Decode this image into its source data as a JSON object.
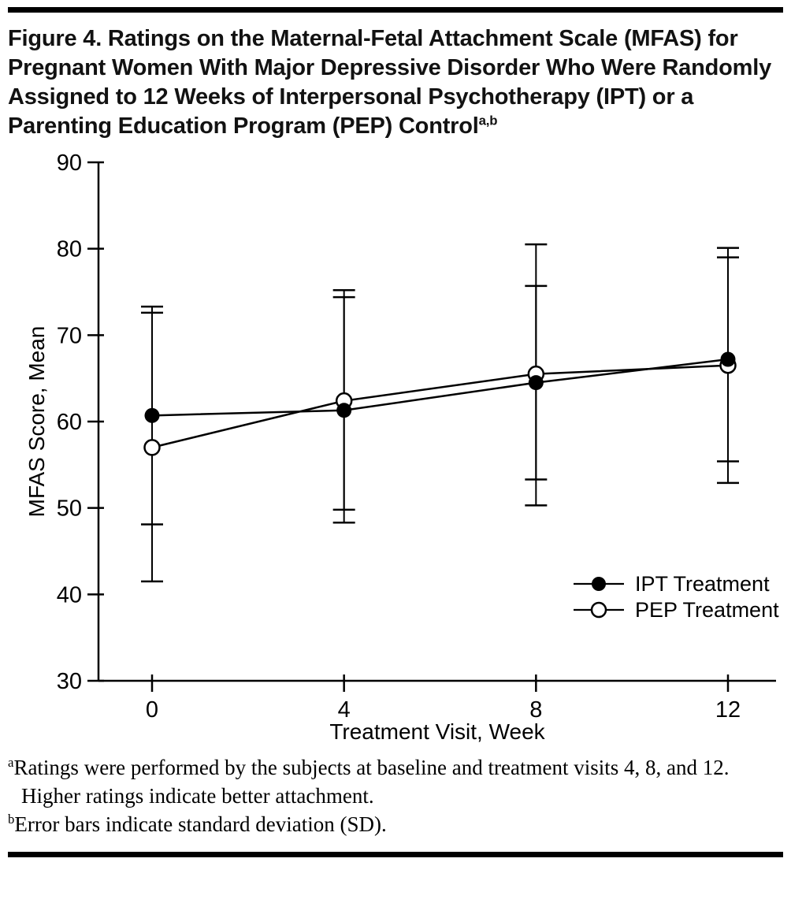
{
  "page": {
    "title": "Figure 4. Ratings on the Maternal-Fetal Attachment Scale (MFAS) for Pregnant Women With Major Depressive Disorder Who Were Randomly Assigned to 12 Weeks of Interpersonal Psychotherapy (IPT) or a Parenting Education Program (PEP) Control",
    "title_superscript": "a,b",
    "footnotes": [
      {
        "marker": "a",
        "text": "Ratings were performed by the subjects at baseline and treatment visits 4, 8, and 12. Higher ratings indicate better attachment."
      },
      {
        "marker": "b",
        "text": "Error bars indicate standard deviation (SD)."
      }
    ],
    "colors": {
      "ink": "#000000",
      "rule": "#000000",
      "background": "#ffffff"
    }
  },
  "chart_data": {
    "type": "line",
    "title": "",
    "x": [
      0,
      4,
      8,
      12
    ],
    "xticks": [
      0,
      4,
      8,
      12
    ],
    "yticks": [
      30,
      40,
      50,
      60,
      70,
      80,
      90
    ],
    "xlabel": "Treatment Visit, Week",
    "ylabel": "MFAS Score, Mean",
    "ylim": [
      30,
      90
    ],
    "grid": false,
    "error_bars": "standard deviation",
    "legend_position": "lower right",
    "series": [
      {
        "name": "IPT Treatment",
        "marker": "filled-circle",
        "color": "#000000",
        "values": [
          60.7,
          61.3,
          64.5,
          67.2
        ],
        "sd_upper": [
          73.3,
          74.4,
          75.7,
          79.0
        ],
        "sd_lower": [
          48.1,
          48.3,
          53.3,
          55.4
        ]
      },
      {
        "name": "PEP Treatment",
        "marker": "open-circle",
        "color": "#000000",
        "values": [
          57.0,
          62.4,
          65.5,
          66.5
        ],
        "sd_upper": [
          72.6,
          75.2,
          80.5,
          80.1
        ],
        "sd_lower": [
          41.5,
          49.8,
          50.3,
          52.9
        ]
      }
    ]
  }
}
